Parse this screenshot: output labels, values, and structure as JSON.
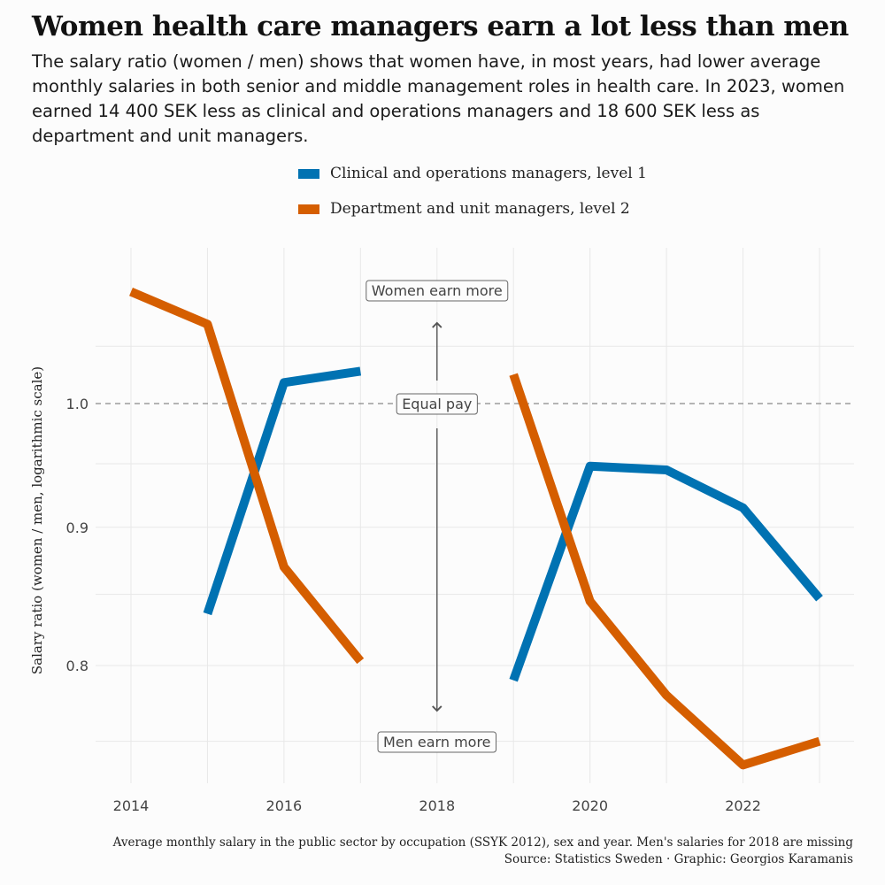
{
  "title": "Women health care managers earn a lot less than men",
  "subtitle": "The salary ratio (women / men) shows that women have, in most years, had lower average monthly salaries in both senior and middle management roles in health care. In 2023, women earned 14 400 SEK less as clinical and operations managers and 18 600 SEK less as department and unit managers.",
  "legend": [
    {
      "label": "Clinical and operations managers, level 1",
      "color": "#0072b2"
    },
    {
      "label": "Department and unit managers, level 2",
      "color": "#d55e00"
    }
  ],
  "annotations": {
    "women_more": "Women earn more",
    "equal": "Equal pay",
    "men_more": "Men earn more"
  },
  "caption": {
    "line1": "Average monthly salary in the public sector by occupation (SSYK 2012), sex and year. Men's salaries for 2018 are missing",
    "line2": "Source: Statistics Sweden · Graphic: Georgios Karamanis"
  },
  "chart_data": {
    "type": "line",
    "title": "Women health care managers earn a lot less than men",
    "xlabel": "",
    "ylabel": "Salary ratio (women / men, logarithmic scale)",
    "yscale": "log",
    "xlim": [
      2014,
      2023
    ],
    "ylim": [
      0.73,
      1.11
    ],
    "x_ticks": [
      2014,
      2016,
      2018,
      2020,
      2022
    ],
    "x_tick_labels": [
      "2014",
      "2016",
      "2018",
      "2020",
      "2022"
    ],
    "y_ticks": [
      0.8,
      0.9,
      1.0
    ],
    "y_tick_labels": [
      "0.8",
      "0.9",
      "1.0"
    ],
    "reference_line": 1.0,
    "series": [
      {
        "name": "Clinical and operations managers, level 1",
        "color": "#0072b2",
        "x": [
          2015,
          2016,
          2017,
          2018,
          2019,
          2020,
          2021,
          2022,
          2023
        ],
        "values": [
          0.836,
          1.018,
          1.028,
          null,
          0.79,
          0.948,
          0.945,
          0.915,
          0.847
        ]
      },
      {
        "name": "Department and unit managers, level 2",
        "color": "#d55e00",
        "x": [
          2014,
          2015,
          2016,
          2017,
          2018,
          2019,
          2020,
          2021,
          2022,
          2023
        ],
        "values": [
          1.1,
          1.07,
          0.87,
          0.803,
          null,
          1.025,
          0.845,
          0.78,
          0.735,
          0.75
        ]
      }
    ]
  }
}
